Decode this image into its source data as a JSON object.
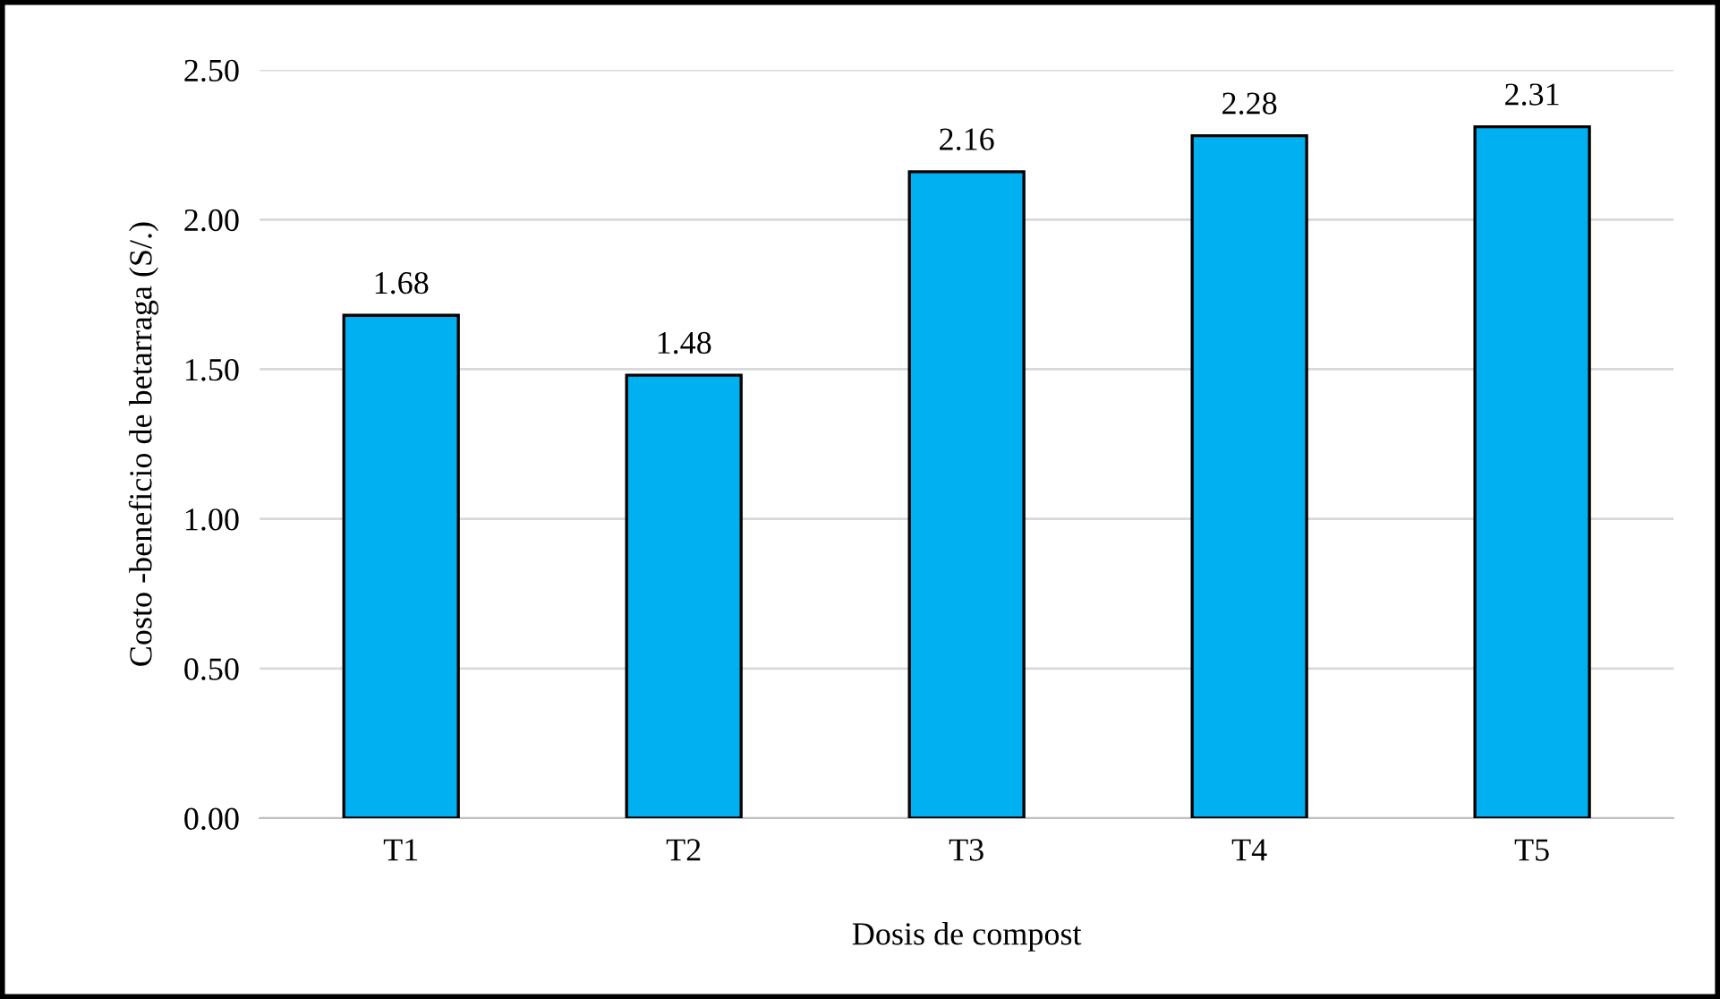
{
  "chart_data": {
    "type": "bar",
    "xlabel": "Dosis de compost",
    "ylabel": "Costo -beneficio de betarraga (S/.)",
    "categories": [
      "T1",
      "T2",
      "T3",
      "T4",
      "T5"
    ],
    "values": [
      1.68,
      1.48,
      2.16,
      2.28,
      2.31
    ],
    "color": "#00b0f0",
    "ylim": [
      0,
      2.5
    ],
    "yticks": [
      {
        "value": 0,
        "label": "0.00"
      },
      {
        "value": 0.5,
        "label": "0.50"
      },
      {
        "value": 1,
        "label": "1.00"
      },
      {
        "value": 1.5,
        "label": "1.50"
      },
      {
        "value": 2,
        "label": "2.00"
      },
      {
        "value": 2.5,
        "label": "2.50"
      }
    ],
    "grid": "y",
    "data_labels": true
  }
}
